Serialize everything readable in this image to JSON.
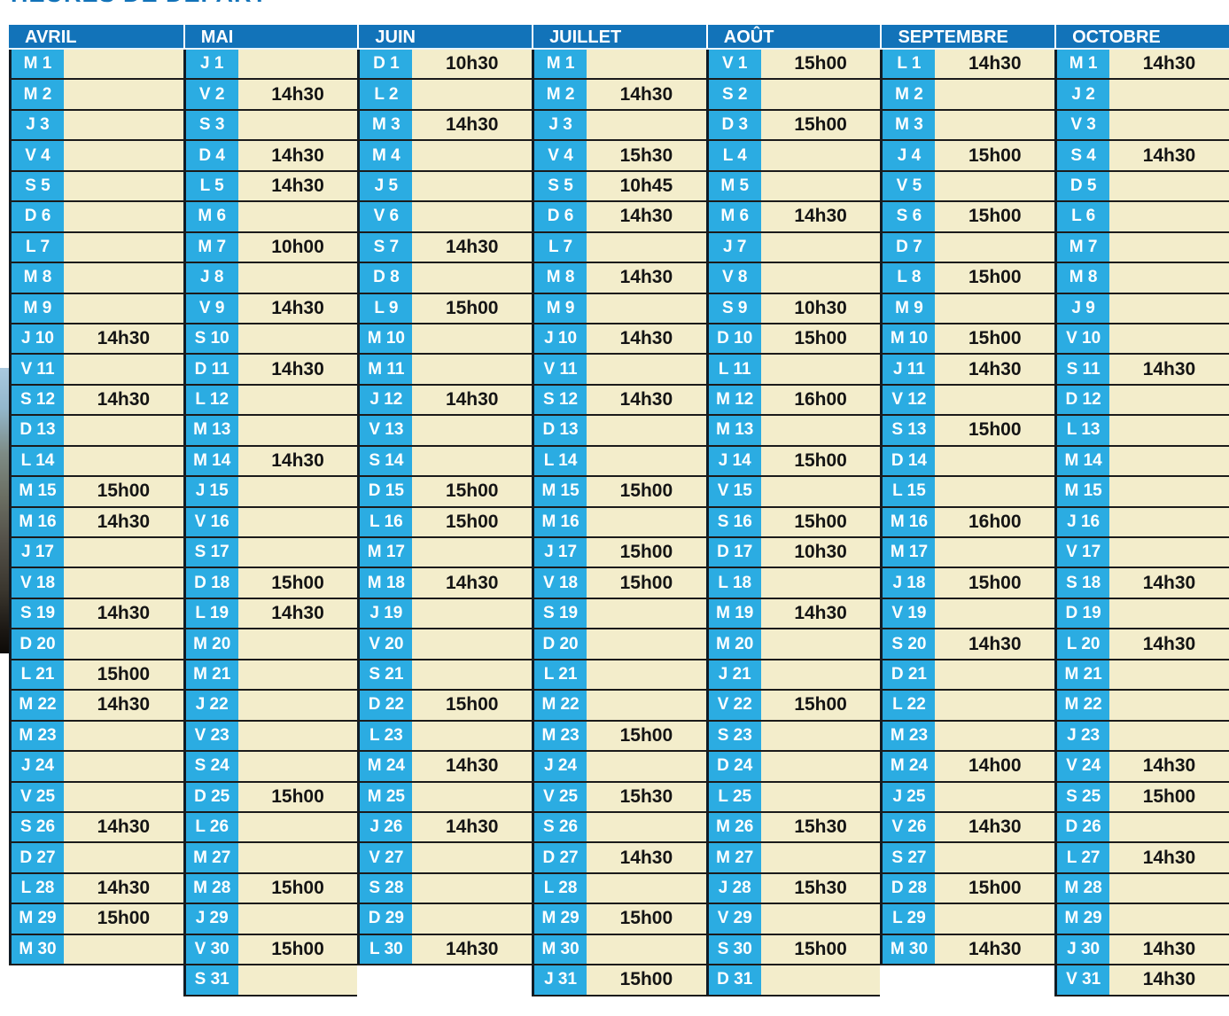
{
  "title": "HEURES DE DÉPART",
  "colors": {
    "header_bg": "#1273b9",
    "day_cell_bg": "#2bace2",
    "time_cell_bg": "#f3edcb",
    "grid_line": "#1b1b1b",
    "title_color": "#1273b9"
  },
  "calendar": {
    "months": [
      {
        "label": "AVRIL",
        "days": [
          [
            "M 1",
            ""
          ],
          [
            "M 2",
            ""
          ],
          [
            "J 3",
            ""
          ],
          [
            "V 4",
            ""
          ],
          [
            "S 5",
            ""
          ],
          [
            "D 6",
            ""
          ],
          [
            "L 7",
            ""
          ],
          [
            "M 8",
            ""
          ],
          [
            "M 9",
            ""
          ],
          [
            "J 10",
            "14h30"
          ],
          [
            "V 11",
            ""
          ],
          [
            "S 12",
            "14h30"
          ],
          [
            "D 13",
            ""
          ],
          [
            "L 14",
            ""
          ],
          [
            "M 15",
            "15h00"
          ],
          [
            "M 16",
            "14h30"
          ],
          [
            "J 17",
            ""
          ],
          [
            "V 18",
            ""
          ],
          [
            "S 19",
            "14h30"
          ],
          [
            "D 20",
            ""
          ],
          [
            "L 21",
            "15h00"
          ],
          [
            "M 22",
            "14h30"
          ],
          [
            "M 23",
            ""
          ],
          [
            "J 24",
            ""
          ],
          [
            "V 25",
            ""
          ],
          [
            "S 26",
            "14h30"
          ],
          [
            "D 27",
            ""
          ],
          [
            "L 28",
            "14h30"
          ],
          [
            "M 29",
            "15h00"
          ],
          [
            "M 30",
            ""
          ]
        ]
      },
      {
        "label": "MAI",
        "days": [
          [
            "J 1",
            ""
          ],
          [
            "V 2",
            "14h30"
          ],
          [
            "S 3",
            ""
          ],
          [
            "D 4",
            "14h30"
          ],
          [
            "L 5",
            "14h30"
          ],
          [
            "M 6",
            ""
          ],
          [
            "M 7",
            "10h00"
          ],
          [
            "J 8",
            ""
          ],
          [
            "V 9",
            "14h30"
          ],
          [
            "S 10",
            ""
          ],
          [
            "D 11",
            "14h30"
          ],
          [
            "L 12",
            ""
          ],
          [
            "M 13",
            ""
          ],
          [
            "M 14",
            "14h30"
          ],
          [
            "J 15",
            ""
          ],
          [
            "V 16",
            ""
          ],
          [
            "S 17",
            ""
          ],
          [
            "D 18",
            "15h00"
          ],
          [
            "L 19",
            "14h30"
          ],
          [
            "M 20",
            ""
          ],
          [
            "M 21",
            ""
          ],
          [
            "J 22",
            ""
          ],
          [
            "V 23",
            ""
          ],
          [
            "S 24",
            ""
          ],
          [
            "D 25",
            "15h00"
          ],
          [
            "L 26",
            ""
          ],
          [
            "M 27",
            ""
          ],
          [
            "M 28",
            "15h00"
          ],
          [
            "J 29",
            ""
          ],
          [
            "V 30",
            "15h00"
          ],
          [
            "S 31",
            ""
          ]
        ]
      },
      {
        "label": "JUIN",
        "days": [
          [
            "D 1",
            "10h30"
          ],
          [
            "L 2",
            ""
          ],
          [
            "M 3",
            "14h30"
          ],
          [
            "M 4",
            ""
          ],
          [
            "J 5",
            ""
          ],
          [
            "V 6",
            ""
          ],
          [
            "S 7",
            "14h30"
          ],
          [
            "D 8",
            ""
          ],
          [
            "L 9",
            "15h00"
          ],
          [
            "M 10",
            ""
          ],
          [
            "M 11",
            ""
          ],
          [
            "J 12",
            "14h30"
          ],
          [
            "V 13",
            ""
          ],
          [
            "S 14",
            ""
          ],
          [
            "D 15",
            "15h00"
          ],
          [
            "L 16",
            "15h00"
          ],
          [
            "M 17",
            ""
          ],
          [
            "M 18",
            "14h30"
          ],
          [
            "J 19",
            ""
          ],
          [
            "V 20",
            ""
          ],
          [
            "S 21",
            ""
          ],
          [
            "D 22",
            "15h00"
          ],
          [
            "L 23",
            ""
          ],
          [
            "M 24",
            "14h30"
          ],
          [
            "M 25",
            ""
          ],
          [
            "J 26",
            "14h30"
          ],
          [
            "V 27",
            ""
          ],
          [
            "S 28",
            ""
          ],
          [
            "D 29",
            ""
          ],
          [
            "L 30",
            "14h30"
          ]
        ]
      },
      {
        "label": "JUILLET",
        "days": [
          [
            "M 1",
            ""
          ],
          [
            "M 2",
            "14h30"
          ],
          [
            "J 3",
            ""
          ],
          [
            "V 4",
            "15h30"
          ],
          [
            "S 5",
            "10h45"
          ],
          [
            "D 6",
            "14h30"
          ],
          [
            "L 7",
            ""
          ],
          [
            "M 8",
            "14h30"
          ],
          [
            "M 9",
            ""
          ],
          [
            "J 10",
            "14h30"
          ],
          [
            "V 11",
            ""
          ],
          [
            "S 12",
            "14h30"
          ],
          [
            "D 13",
            ""
          ],
          [
            "L 14",
            ""
          ],
          [
            "M 15",
            "15h00"
          ],
          [
            "M 16",
            ""
          ],
          [
            "J 17",
            "15h00"
          ],
          [
            "V 18",
            "15h00"
          ],
          [
            "S 19",
            ""
          ],
          [
            "D 20",
            ""
          ],
          [
            "L 21",
            ""
          ],
          [
            "M 22",
            ""
          ],
          [
            "M 23",
            "15h00"
          ],
          [
            "J 24",
            ""
          ],
          [
            "V 25",
            "15h30"
          ],
          [
            "S 26",
            ""
          ],
          [
            "D 27",
            "14h30"
          ],
          [
            "L 28",
            ""
          ],
          [
            "M 29",
            "15h00"
          ],
          [
            "M 30",
            ""
          ],
          [
            "J 31",
            "15h00"
          ]
        ]
      },
      {
        "label": "AOÛT",
        "days": [
          [
            "V 1",
            "15h00"
          ],
          [
            "S 2",
            ""
          ],
          [
            "D 3",
            "15h00"
          ],
          [
            "L 4",
            ""
          ],
          [
            "M 5",
            ""
          ],
          [
            "M 6",
            "14h30"
          ],
          [
            "J 7",
            ""
          ],
          [
            "V 8",
            ""
          ],
          [
            "S 9",
            "10h30"
          ],
          [
            "D 10",
            "15h00"
          ],
          [
            "L 11",
            ""
          ],
          [
            "M 12",
            "16h00"
          ],
          [
            "M 13",
            ""
          ],
          [
            "J 14",
            "15h00"
          ],
          [
            "V 15",
            ""
          ],
          [
            "S 16",
            "15h00"
          ],
          [
            "D 17",
            "10h30"
          ],
          [
            "L 18",
            ""
          ],
          [
            "M 19",
            "14h30"
          ],
          [
            "M 20",
            ""
          ],
          [
            "J 21",
            ""
          ],
          [
            "V 22",
            "15h00"
          ],
          [
            "S 23",
            ""
          ],
          [
            "D 24",
            ""
          ],
          [
            "L 25",
            ""
          ],
          [
            "M 26",
            "15h30"
          ],
          [
            "M 27",
            ""
          ],
          [
            "J 28",
            "15h30"
          ],
          [
            "V 29",
            ""
          ],
          [
            "S 30",
            "15h00"
          ],
          [
            "D 31",
            ""
          ]
        ]
      },
      {
        "label": "SEPTEMBRE",
        "days": [
          [
            "L 1",
            "14h30"
          ],
          [
            "M 2",
            ""
          ],
          [
            "M 3",
            ""
          ],
          [
            "J 4",
            "15h00"
          ],
          [
            "V 5",
            ""
          ],
          [
            "S 6",
            "15h00"
          ],
          [
            "D 7",
            ""
          ],
          [
            "L 8",
            "15h00"
          ],
          [
            "M 9",
            ""
          ],
          [
            "M 10",
            "15h00"
          ],
          [
            "J 11",
            "14h30"
          ],
          [
            "V 12",
            ""
          ],
          [
            "S 13",
            "15h00"
          ],
          [
            "D 14",
            ""
          ],
          [
            "L 15",
            ""
          ],
          [
            "M 16",
            "16h00"
          ],
          [
            "M 17",
            ""
          ],
          [
            "J 18",
            "15h00"
          ],
          [
            "V 19",
            ""
          ],
          [
            "S 20",
            "14h30"
          ],
          [
            "D 21",
            ""
          ],
          [
            "L 22",
            ""
          ],
          [
            "M 23",
            ""
          ],
          [
            "M 24",
            "14h00"
          ],
          [
            "J 25",
            ""
          ],
          [
            "V 26",
            "14h30"
          ],
          [
            "S 27",
            ""
          ],
          [
            "D 28",
            "15h00"
          ],
          [
            "L 29",
            ""
          ],
          [
            "M 30",
            "14h30"
          ]
        ]
      },
      {
        "label": "OCTOBRE",
        "days": [
          [
            "M 1",
            "14h30"
          ],
          [
            "J 2",
            ""
          ],
          [
            "V 3",
            ""
          ],
          [
            "S 4",
            "14h30"
          ],
          [
            "D 5",
            ""
          ],
          [
            "L 6",
            ""
          ],
          [
            "M 7",
            ""
          ],
          [
            "M 8",
            ""
          ],
          [
            "J 9",
            ""
          ],
          [
            "V 10",
            ""
          ],
          [
            "S 11",
            "14h30"
          ],
          [
            "D 12",
            ""
          ],
          [
            "L 13",
            ""
          ],
          [
            "M 14",
            ""
          ],
          [
            "M 15",
            ""
          ],
          [
            "J 16",
            ""
          ],
          [
            "V 17",
            ""
          ],
          [
            "S 18",
            "14h30"
          ],
          [
            "D 19",
            ""
          ],
          [
            "L 20",
            "14h30"
          ],
          [
            "M 21",
            ""
          ],
          [
            "M 22",
            ""
          ],
          [
            "J 23",
            ""
          ],
          [
            "V 24",
            "14h30"
          ],
          [
            "S 25",
            "15h00"
          ],
          [
            "D 26",
            ""
          ],
          [
            "L 27",
            "14h30"
          ],
          [
            "M 28",
            ""
          ],
          [
            "M 29",
            ""
          ],
          [
            "J 30",
            "14h30"
          ],
          [
            "V 31",
            "14h30"
          ]
        ]
      }
    ]
  }
}
